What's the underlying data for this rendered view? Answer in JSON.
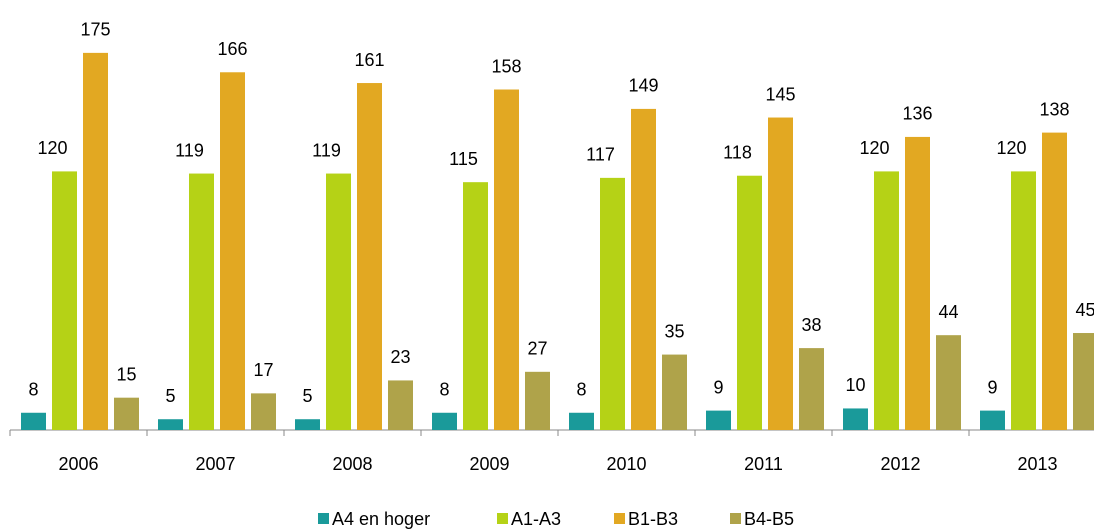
{
  "chart_data": {
    "type": "bar",
    "categories": [
      "2006",
      "2007",
      "2008",
      "2009",
      "2010",
      "2011",
      "2012",
      "2013"
    ],
    "series": [
      {
        "name": "A4 en hoger",
        "color": "#1a9a9a",
        "values": [
          8,
          5,
          5,
          8,
          8,
          9,
          10,
          9
        ]
      },
      {
        "name": "A1-A3",
        "color": "#b5d216",
        "values": [
          120,
          119,
          119,
          115,
          117,
          118,
          120,
          120
        ]
      },
      {
        "name": "B1-B3",
        "color": "#e2a822",
        "values": [
          175,
          166,
          161,
          158,
          149,
          145,
          136,
          138
        ]
      },
      {
        "name": "B4-B5",
        "color": "#afa34a",
        "values": [
          15,
          17,
          23,
          27,
          35,
          38,
          44,
          45
        ]
      }
    ],
    "ylim": [
      0,
      200
    ],
    "legend": "bottom"
  }
}
